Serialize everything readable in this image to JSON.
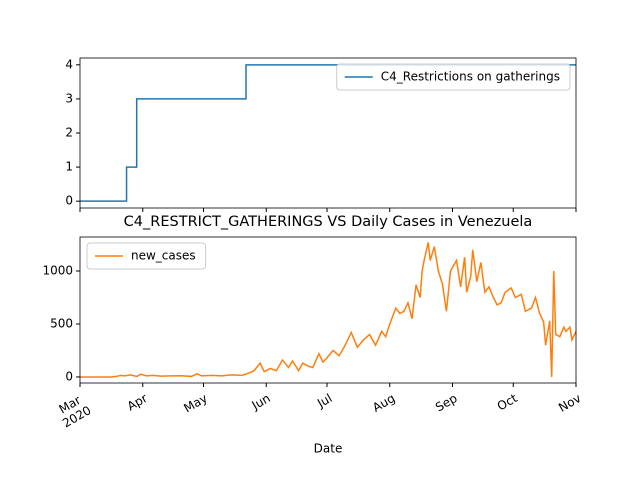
{
  "chart_data": [
    {
      "type": "line",
      "legend": "upper right",
      "xlim": [
        0,
        245
      ],
      "ylim": [
        -0.2,
        4.2
      ],
      "yticks": [
        0,
        1,
        2,
        3,
        4
      ],
      "x": [
        0,
        23,
        23,
        28,
        28,
        82,
        82,
        245
      ],
      "series": [
        {
          "name": "C4_Restrictions on gatherings",
          "color": "#1f77b4",
          "values": [
            0,
            0,
            1,
            1,
            3,
            3,
            4,
            4
          ]
        }
      ]
    },
    {
      "type": "line",
      "title": "C4_RESTRICT_GATHERINGS VS Daily Cases in Venezuela",
      "xlabel": "Date",
      "legend": "upper left",
      "xlim": [
        0,
        245
      ],
      "ylim": [
        -57,
        1321
      ],
      "yticks": [
        0,
        500,
        1000
      ],
      "xticks": [
        {
          "value": 0,
          "label": "Mar\n2020"
        },
        {
          "value": 31,
          "label": "Apr"
        },
        {
          "value": 61,
          "label": "May"
        },
        {
          "value": 92,
          "label": "Jun"
        },
        {
          "value": 122,
          "label": "Jul"
        },
        {
          "value": 153,
          "label": "Aug"
        },
        {
          "value": 184,
          "label": "Sep"
        },
        {
          "value": 214,
          "label": "Oct"
        },
        {
          "value": 245,
          "label": "Nov"
        }
      ],
      "x": [
        0,
        5,
        10,
        15,
        18,
        20,
        22,
        25,
        28,
        30,
        33,
        36,
        40,
        45,
        50,
        55,
        58,
        60,
        65,
        70,
        75,
        80,
        84,
        86,
        89,
        91,
        94,
        97,
        100,
        103,
        105,
        108,
        110,
        113,
        115,
        118,
        120,
        122,
        125,
        128,
        131,
        134,
        137,
        140,
        143,
        146,
        149,
        151,
        153,
        156,
        158,
        160,
        162,
        164,
        166,
        168,
        169,
        170,
        172,
        173,
        175,
        177,
        179,
        181,
        183,
        186,
        188,
        190,
        191,
        193,
        194,
        196,
        198,
        200,
        202,
        204,
        206,
        208,
        210,
        213,
        215,
        218,
        220,
        223,
        225,
        227,
        229,
        230,
        232,
        233,
        234,
        235,
        237,
        239,
        240,
        242,
        243,
        245
      ],
      "series": [
        {
          "name": "new_cases",
          "color": "#ff7f0e",
          "values": [
            0,
            0,
            0,
            0,
            5,
            15,
            10,
            20,
            5,
            25,
            10,
            15,
            8,
            10,
            12,
            5,
            30,
            10,
            15,
            10,
            20,
            15,
            40,
            60,
            130,
            50,
            80,
            60,
            160,
            90,
            150,
            60,
            130,
            100,
            90,
            220,
            140,
            180,
            250,
            200,
            300,
            420,
            280,
            350,
            400,
            300,
            430,
            380,
            500,
            650,
            600,
            620,
            700,
            550,
            870,
            750,
            1000,
            1100,
            1270,
            1100,
            1230,
            1000,
            880,
            620,
            1000,
            1100,
            850,
            1130,
            800,
            950,
            1200,
            900,
            1080,
            800,
            850,
            760,
            680,
            700,
            800,
            840,
            750,
            780,
            620,
            650,
            750,
            600,
            520,
            300,
            530,
            0,
            1000,
            400,
            380,
            470,
            430,
            470,
            350,
            430
          ]
        }
      ]
    }
  ]
}
